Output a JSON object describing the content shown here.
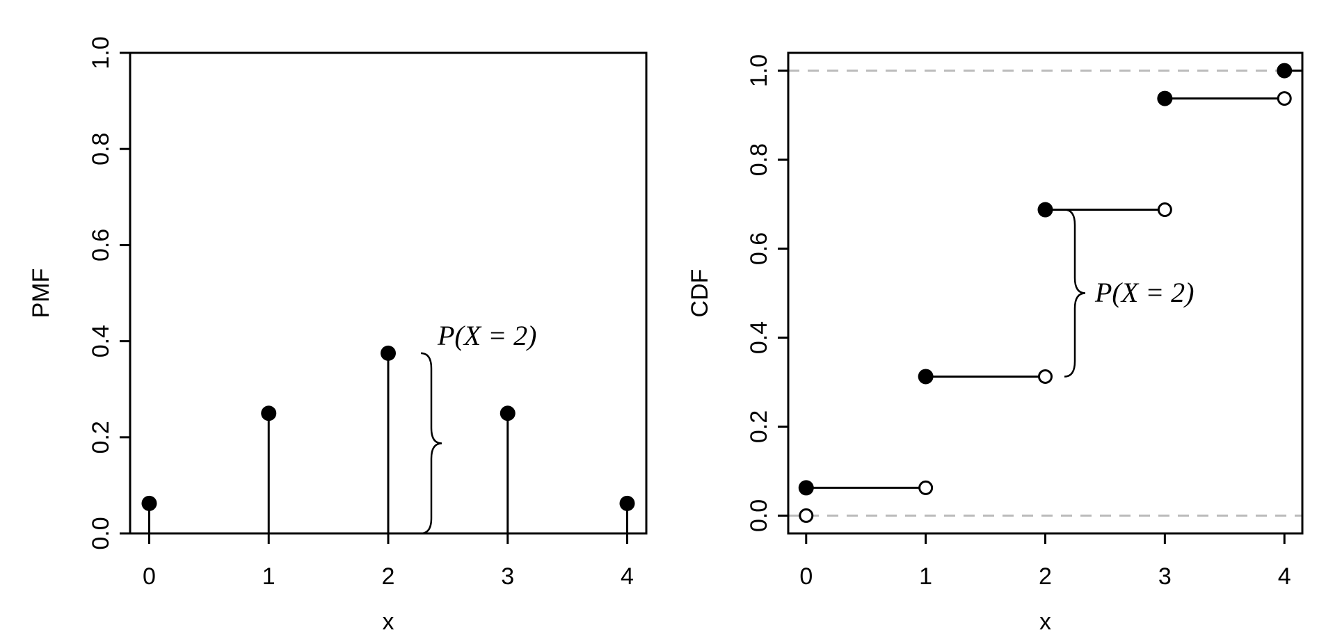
{
  "chart_data": [
    {
      "type": "stem",
      "x_label": "x",
      "y_label": "PMF",
      "x": [
        0,
        1,
        2,
        3,
        4
      ],
      "values": [
        0.0625,
        0.25,
        0.375,
        0.25,
        0.0625
      ],
      "color": "#000000",
      "xlim": [
        -0.16,
        4.16
      ],
      "xticks": [
        0,
        1,
        2,
        3,
        4
      ],
      "ylim": [
        0,
        1
      ],
      "yticks": [
        {
          "value": 0,
          "label": "0.0"
        },
        0.2,
        0.4,
        0.6,
        0.8,
        {
          "value": 1,
          "label": "1.0"
        }
      ],
      "annotation": {
        "text": "P(X = 2)",
        "from": 0,
        "to": 0.375
      }
    },
    {
      "type": "step",
      "x_label": "x",
      "y_label": "CDF",
      "x": [
        0,
        1,
        2,
        3,
        4
      ],
      "values": [
        0.0625,
        0.3125,
        0.6875,
        0.9375,
        1
      ],
      "open_values": [
        0,
        0.0625,
        0.3125,
        0.6875,
        0.9375
      ],
      "color": "#000000",
      "reference_lines": [
        0,
        1
      ],
      "reference_color": "#bbbbbb",
      "xlim": [
        -0.15,
        4.15
      ],
      "xticks": [
        0,
        1,
        2,
        3,
        4
      ],
      "ylim": [
        -0.04,
        1.04
      ],
      "yticks": [
        {
          "value": 0,
          "label": "0.0"
        },
        0.2,
        0.4,
        0.6,
        0.8,
        {
          "value": 1,
          "label": "1.0"
        }
      ],
      "annotation": {
        "text": "P(X = 2)",
        "from": 0.3125,
        "to": 0.6875
      }
    }
  ]
}
